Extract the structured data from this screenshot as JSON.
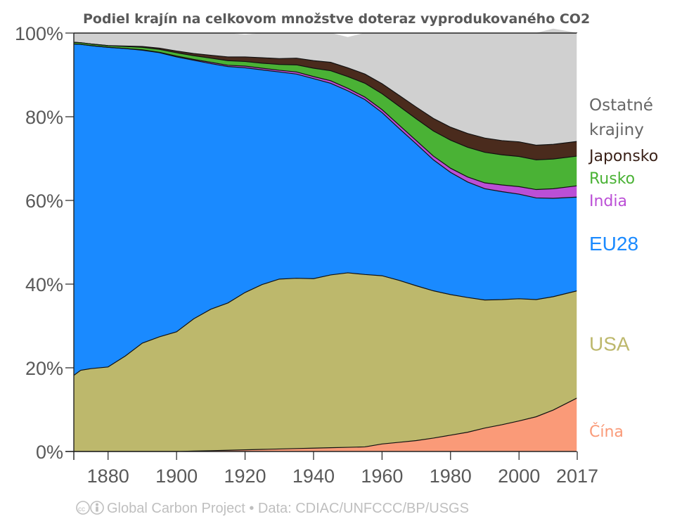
{
  "chart_data": {
    "type": "area",
    "stacked": true,
    "percent": true,
    "title": "Podiel krajín na celkovom množstve doteraz vyprodukovaného CO2",
    "xlim": [
      1870,
      2017
    ],
    "ylim": [
      0,
      100
    ],
    "y_ticks": [
      "0%",
      "20%",
      "40%",
      "60%",
      "80%",
      "100%"
    ],
    "x_ticks": [
      "1880",
      "1900",
      "1920",
      "1940",
      "1960",
      "1980",
      "2000",
      "2017"
    ],
    "x": [
      1870,
      1872,
      1875,
      1880,
      1885,
      1890,
      1895,
      1900,
      1905,
      1910,
      1915,
      1920,
      1925,
      1930,
      1935,
      1940,
      1945,
      1950,
      1955,
      1960,
      1965,
      1970,
      1975,
      1980,
      1985,
      1990,
      1995,
      2000,
      2005,
      2010,
      2017
    ],
    "series": [
      {
        "name": "Čína",
        "color": "#fa9a78",
        "values": [
          0,
          0,
          0,
          0,
          0,
          0,
          0,
          0,
          0.1,
          0.2,
          0.3,
          0.4,
          0.5,
          0.6,
          0.7,
          0.8,
          0.9,
          1.0,
          1.1,
          1.8,
          2.2,
          2.6,
          3.2,
          3.9,
          4.6,
          5.6,
          6.4,
          7.3,
          8.3,
          9.9,
          12.8
        ]
      },
      {
        "name": "USA",
        "color": "#bdb86c",
        "values": [
          18.2,
          19.4,
          19.8,
          20.2,
          22.8,
          25.9,
          27.4,
          28.6,
          31.6,
          33.8,
          35.2,
          37.6,
          39.4,
          40.6,
          40.7,
          40.5,
          41.3,
          41.7,
          41.2,
          40.2,
          38.7,
          37.0,
          35.2,
          33.6,
          32.2,
          30.6,
          29.9,
          29.2,
          28.0,
          27.1,
          25.6
        ]
      },
      {
        "name": "EU28",
        "color": "#1a8aff",
        "values": [
          79.2,
          77.9,
          77.2,
          76.4,
          73.5,
          70.0,
          67.9,
          65.7,
          61.8,
          58.7,
          56.5,
          53.7,
          51.3,
          49.5,
          48.8,
          47.8,
          45.8,
          43.5,
          41.8,
          39.0,
          36.3,
          33.9,
          31.3,
          29.2,
          27.6,
          26.6,
          25.8,
          25.0,
          24.3,
          23.5,
          22.4
        ]
      },
      {
        "name": "India",
        "color": "#bb4fd6",
        "values": [
          0,
          0,
          0,
          0,
          0,
          0.1,
          0.1,
          0.2,
          0.2,
          0.3,
          0.3,
          0.4,
          0.4,
          0.4,
          0.5,
          0.5,
          0.6,
          0.6,
          0.6,
          0.7,
          0.8,
          0.8,
          0.9,
          1.0,
          1.2,
          1.4,
          1.6,
          1.8,
          2.0,
          2.3,
          2.7
        ]
      },
      {
        "name": "Rusko",
        "color": "#4ab235",
        "values": [
          0.4,
          0.4,
          0.4,
          0.4,
          0.5,
          0.6,
          0.7,
          0.8,
          0.9,
          1.0,
          1.1,
          1.1,
          1.2,
          1.4,
          1.7,
          2.0,
          2.4,
          2.8,
          3.3,
          3.8,
          4.5,
          5.2,
          6.0,
          6.7,
          7.1,
          7.3,
          7.2,
          7.2,
          7.1,
          7.1,
          7.1
        ]
      },
      {
        "name": "Japonsko",
        "color": "#4a2b1d",
        "values": [
          0,
          0,
          0,
          0,
          0.1,
          0.2,
          0.3,
          0.4,
          0.5,
          0.7,
          0.9,
          1.1,
          1.3,
          1.4,
          1.6,
          1.8,
          2.0,
          2.1,
          2.2,
          2.4,
          2.6,
          2.8,
          3.0,
          3.1,
          3.3,
          3.4,
          3.4,
          3.5,
          3.5,
          3.5,
          3.5
        ]
      },
      {
        "name": "Ostatné krajiny",
        "color": "#d0d0d0",
        "values": [
          2.2,
          2.3,
          2.6,
          3.0,
          3.1,
          3.2,
          3.6,
          4.3,
          4.9,
          5.3,
          5.7,
          5.3,
          5.9,
          6.1,
          6.0,
          6.6,
          7.0,
          7.3,
          9.8,
          12.1,
          14.9,
          17.7,
          20.4,
          22.5,
          24.0,
          25.1,
          25.7,
          26.0,
          26.8,
          27.6,
          25.9
        ]
      }
    ],
    "legend_position": "right",
    "legend_lines": {
      "Ostatné krajiny": [
        "Ostatné",
        "krajiny"
      ]
    },
    "grid": false,
    "credit": "Global Carbon Project  •  Data: CDIAC/UNFCCC/BP/USGS"
  }
}
